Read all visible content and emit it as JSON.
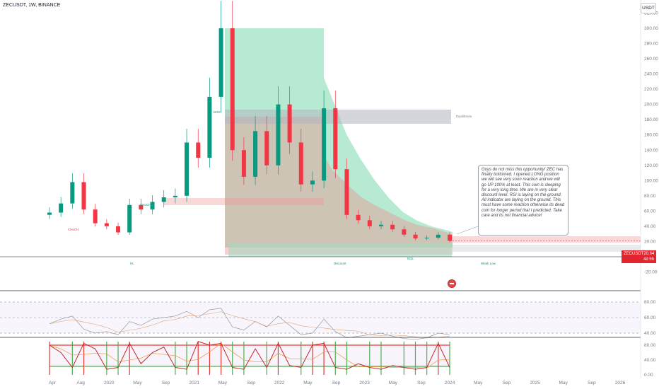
{
  "header": {
    "symbol_text": "ZECUSDT, 1W, BINANCE"
  },
  "currency_button": "USDT",
  "price_tag": {
    "symbol": "ZECUSDT",
    "price": "20.64",
    "countdown": "4d 5h"
  },
  "note_text": "Guys do not miss this opportunity! ZEC has finally bottomed. I opened LONG position we will see very soon reaction and we will go UP 100% at least. This coin is sleeping for a very long time. We are in very clear discount level. RSI is laying on the ground. All indicator are laying on the ground. This must have some reaction otherwise its dead coin for longer period that I predicted. Take care and its not financial advice!",
  "annotations": {
    "equilibrium": "Equilibrium",
    "discount": "Discount",
    "hl": "HL",
    "weak_low": "Weak Low",
    "bos": "BOS",
    "choch": "CHoCH",
    "eq": "EQL"
  },
  "colors": {
    "green_zone": "#42c98a",
    "red_zone": "#ef8f8f",
    "equilibrium_box": "#b2b5be",
    "discount_box": "#a6d8c0",
    "rsi_line": "#9598a1",
    "rsi_ma": "#e0a070",
    "stoch_k": "#c62828",
    "stoch_d": "#f2a050",
    "bull": "#089981",
    "bear": "#f23645",
    "vline_green": "#4caf50",
    "vline_red": "#e53935"
  },
  "chart_data": [
    {
      "type": "candlestick",
      "panel": "price",
      "title": "ZECUSDT, 1W, BINANCE",
      "ylim": [
        -20,
        320
      ],
      "y_ticks": [
        320,
        300,
        280,
        260,
        240,
        220,
        200,
        180,
        160,
        140,
        120,
        100,
        80,
        60,
        40,
        20,
        0,
        -20
      ],
      "y_tick_labels": [
        "320.00",
        "300.00",
        "280.00",
        "260.00",
        "240.00",
        "220.00",
        "200.00",
        "180.00",
        "160.00",
        "140.00",
        "120.00",
        "100.00",
        "80.00",
        "60.00",
        "40.00",
        "20.00",
        "0.00",
        "-20.00"
      ],
      "x_labels": [
        "Apr",
        "Aug",
        "2020",
        "May",
        "Sep",
        "2021",
        "May",
        "Sep",
        "2022",
        "May",
        "Sep",
        "2023",
        "May",
        "Sep",
        "2024",
        "May",
        "Sep",
        "2025",
        "May",
        "Sep",
        "2026"
      ],
      "series": [
        {
          "dates": [
            "2019-04",
            "2019-06",
            "2019-08",
            "2019-10",
            "2019-12",
            "2020-02",
            "2020-04",
            "2020-06",
            "2020-08",
            "2020-10",
            "2020-12",
            "2021-01",
            "2021-02",
            "2021-03",
            "2021-04",
            "2021-05",
            "2021-06",
            "2021-08",
            "2021-09",
            "2021-10",
            "2021-11",
            "2021-12",
            "2022-01",
            "2022-03",
            "2022-04",
            "2022-05",
            "2022-07",
            "2022-09",
            "2022-11",
            "2023-01",
            "2023-03",
            "2023-05",
            "2023-07",
            "2023-09",
            "2023-11",
            "2024-01"
          ],
          "close": [
            58,
            70,
            98,
            62,
            44,
            40,
            32,
            68,
            62,
            72,
            78,
            80,
            150,
            130,
            210,
            300,
            140,
            105,
            165,
            120,
            200,
            150,
            95,
            100,
            195,
            115,
            55,
            48,
            40,
            42,
            36,
            29,
            24,
            25,
            29,
            21
          ]
        }
      ],
      "current_price": 20.64,
      "zones": [
        {
          "name": "Equilibrium",
          "from": 170,
          "to": 186
        },
        {
          "name": "Discount",
          "from": 15,
          "to": 32
        }
      ],
      "labels": [
        "Equilibrium",
        "Discount",
        "HL",
        "Weak Low",
        "BOS",
        "CHoCH",
        "EQL"
      ]
    },
    {
      "type": "line",
      "panel": "rsi",
      "ylim": [
        20,
        80
      ],
      "y_ticks": [
        80,
        60,
        40
      ],
      "y_tick_labels": [
        "80.00",
        "60.00",
        "40.00"
      ],
      "series": [
        {
          "values": [
            52,
            58,
            62,
            45,
            40,
            42,
            38,
            55,
            50,
            58,
            60,
            62,
            68,
            60,
            70,
            72,
            48,
            44,
            55,
            48,
            62,
            50,
            38,
            40,
            58,
            42,
            34,
            36,
            38,
            40,
            36,
            33,
            32,
            34,
            40,
            38
          ]
        }
      ]
    },
    {
      "type": "line",
      "panel": "stochastic",
      "ylim": [
        -5,
        95
      ],
      "y_ticks": [
        80,
        40,
        0
      ],
      "y_tick_labels": [
        "80.00",
        "40.00",
        "0.00"
      ],
      "series": [
        {
          "values": [
            80,
            60,
            20,
            85,
            70,
            15,
            20,
            85,
            30,
            60,
            75,
            20,
            15,
            90,
            80,
            85,
            20,
            15,
            70,
            20,
            85,
            25,
            20,
            80,
            85,
            20,
            15,
            30,
            20,
            15,
            25,
            20,
            15,
            20,
            85,
            20
          ]
        }
      ]
    }
  ]
}
